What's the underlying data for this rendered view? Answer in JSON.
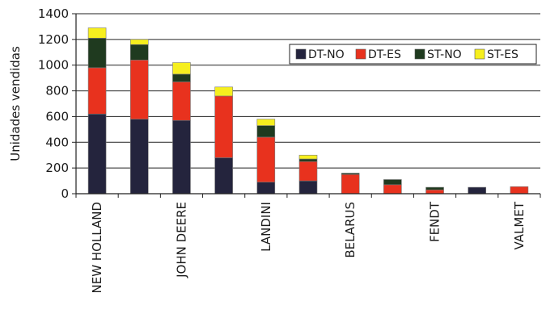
{
  "chart_data": {
    "type": "bar",
    "stacked": true,
    "title": "",
    "xlabel": "",
    "ylabel": "Unidades vendidas",
    "ylim": [
      0,
      1400
    ],
    "yticks": [
      0,
      200,
      400,
      600,
      800,
      1000,
      1200,
      1400
    ],
    "grid": true,
    "legend_position": "top-right",
    "categories": [
      "NEW HOLLAND",
      "",
      "JOHN DEERE",
      "",
      "LANDINI",
      "",
      "BELARUS",
      "",
      "FENDT",
      "",
      "VALMET"
    ],
    "series": [
      {
        "name": "DT-NO",
        "color": "#24243d",
        "values": [
          620,
          580,
          570,
          280,
          90,
          100,
          0,
          0,
          0,
          50,
          0
        ]
      },
      {
        "name": "DT-ES",
        "color": "#e8321e",
        "values": [
          360,
          460,
          300,
          480,
          350,
          150,
          150,
          70,
          30,
          0,
          55
        ]
      },
      {
        "name": "ST-NO",
        "color": "#1f3a1f",
        "values": [
          230,
          120,
          60,
          0,
          90,
          20,
          10,
          40,
          20,
          0,
          0
        ]
      },
      {
        "name": "ST-ES",
        "color": "#f6ef1e",
        "values": [
          80,
          40,
          90,
          70,
          50,
          30,
          0,
          0,
          0,
          0,
          0
        ]
      }
    ]
  }
}
